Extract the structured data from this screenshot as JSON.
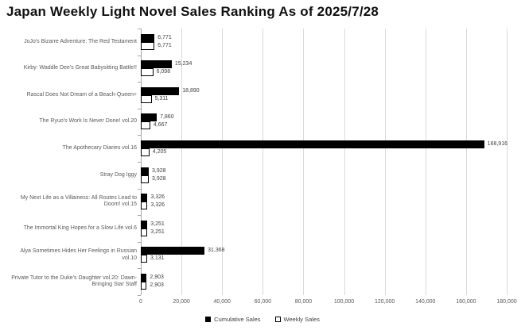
{
  "title": "Japan Weekly Light Novel Sales Ranking As of 2025/7/28",
  "colors": {
    "cumulative_bar": "#000000",
    "weekly_bar_fill": "#FFFFFF",
    "weekly_bar_border": "#000000",
    "gridline": "#D9D9D9",
    "axis": "#A6A6A6",
    "label_text": "#595959"
  },
  "chart_data": {
    "type": "bar",
    "orientation": "horizontal",
    "title": "Japan Weekly Light Novel Sales Ranking As of 2025/7/28",
    "xlabel": "",
    "ylabel": "",
    "xlim": [
      0,
      180000
    ],
    "grid": true,
    "legend_position": "bottom",
    "x_ticks": [
      0,
      20000,
      40000,
      60000,
      80000,
      100000,
      120000,
      140000,
      160000,
      180000
    ],
    "x_tick_labels": [
      "0",
      "20,000",
      "40,000",
      "60,000",
      "80,000",
      "100,000",
      "120,000",
      "140,000",
      "160,000",
      "180,000"
    ],
    "categories": [
      "JoJo's Bizarre Adventure: The Red Testament",
      "Kirby: Waddle Dee's Great Babysitting Battle!!",
      "Rascal Does Not Dream of a Beach-Queen+",
      "The Ryuo's Work Is Never Done! vol.20",
      "The Apothecary Diaries vol.16",
      "Stray Dog Iggy",
      "My Next Life as a Villainess: All Routes Lead to Doom! vol.15",
      "The Immortal King Hopes for a Slow Life vol.6",
      "Alya Sometimes Hides Her Feelings in Russian vol.10",
      "Private Tutor to the Duke's Daughter vol.20: Dawn-Bringing Star Staff"
    ],
    "series": [
      {
        "name": "Cumulative Sales",
        "style": "filled-black",
        "values": [
          6771,
          15234,
          18890,
          7860,
          168916,
          3928,
          3326,
          3251,
          31368,
          2903
        ]
      },
      {
        "name": "Weekly Sales",
        "style": "white-outlined",
        "values": [
          6771,
          6098,
          5311,
          4667,
          4205,
          3928,
          3326,
          3251,
          3131,
          2903
        ]
      }
    ]
  }
}
